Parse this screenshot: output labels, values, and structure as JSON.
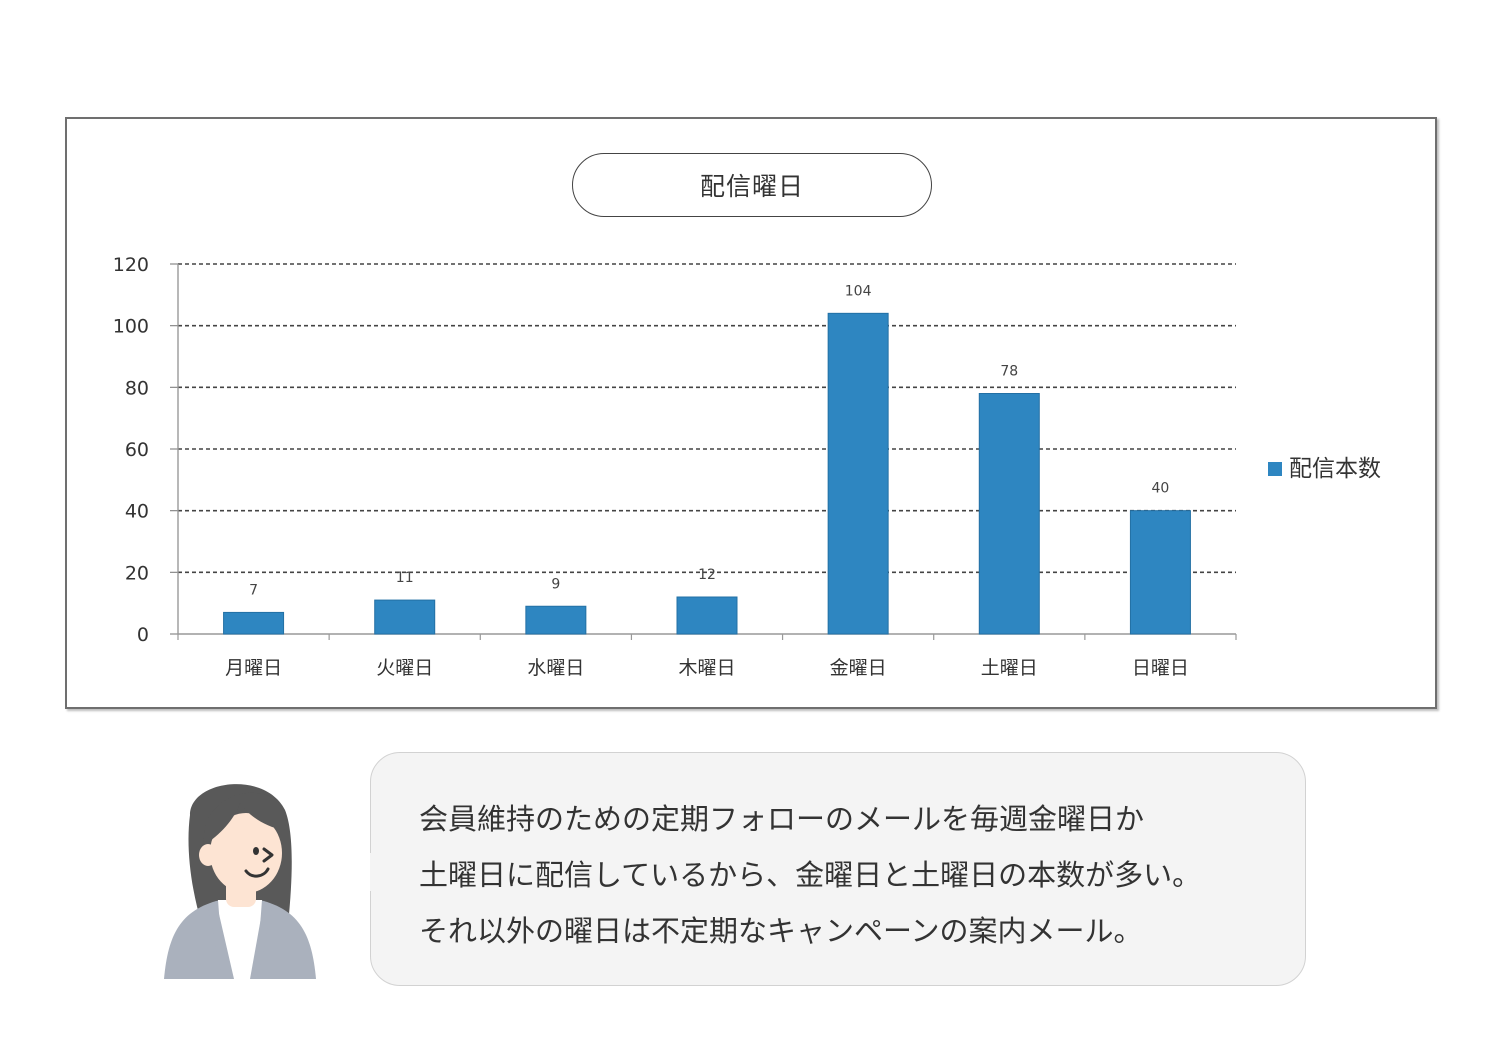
{
  "chart_data": {
    "type": "bar",
    "title": "配信曜日",
    "categories": [
      "月曜日",
      "火曜日",
      "水曜日",
      "木曜日",
      "金曜日",
      "土曜日",
      "日曜日"
    ],
    "series": [
      {
        "name": "配信本数",
        "values": [
          7,
          11,
          9,
          12,
          104,
          78,
          40
        ],
        "color": "#2e86c1"
      }
    ],
    "ylim": [
      0,
      120
    ],
    "yticks": [
      0,
      20,
      40,
      60,
      80,
      100,
      120
    ],
    "grid": true,
    "legend": "right",
    "data_labels": true
  },
  "comment": {
    "lines": [
      "会員維持のための定期フォローのメールを毎週金曜日か",
      "土曜日に配信しているから、金曜日と土曜日の本数が多い。",
      "それ以外の曜日は不定期なキャンペーンの案内メール。"
    ]
  },
  "avatar": {
    "icon": "woman-avatar-icon"
  }
}
